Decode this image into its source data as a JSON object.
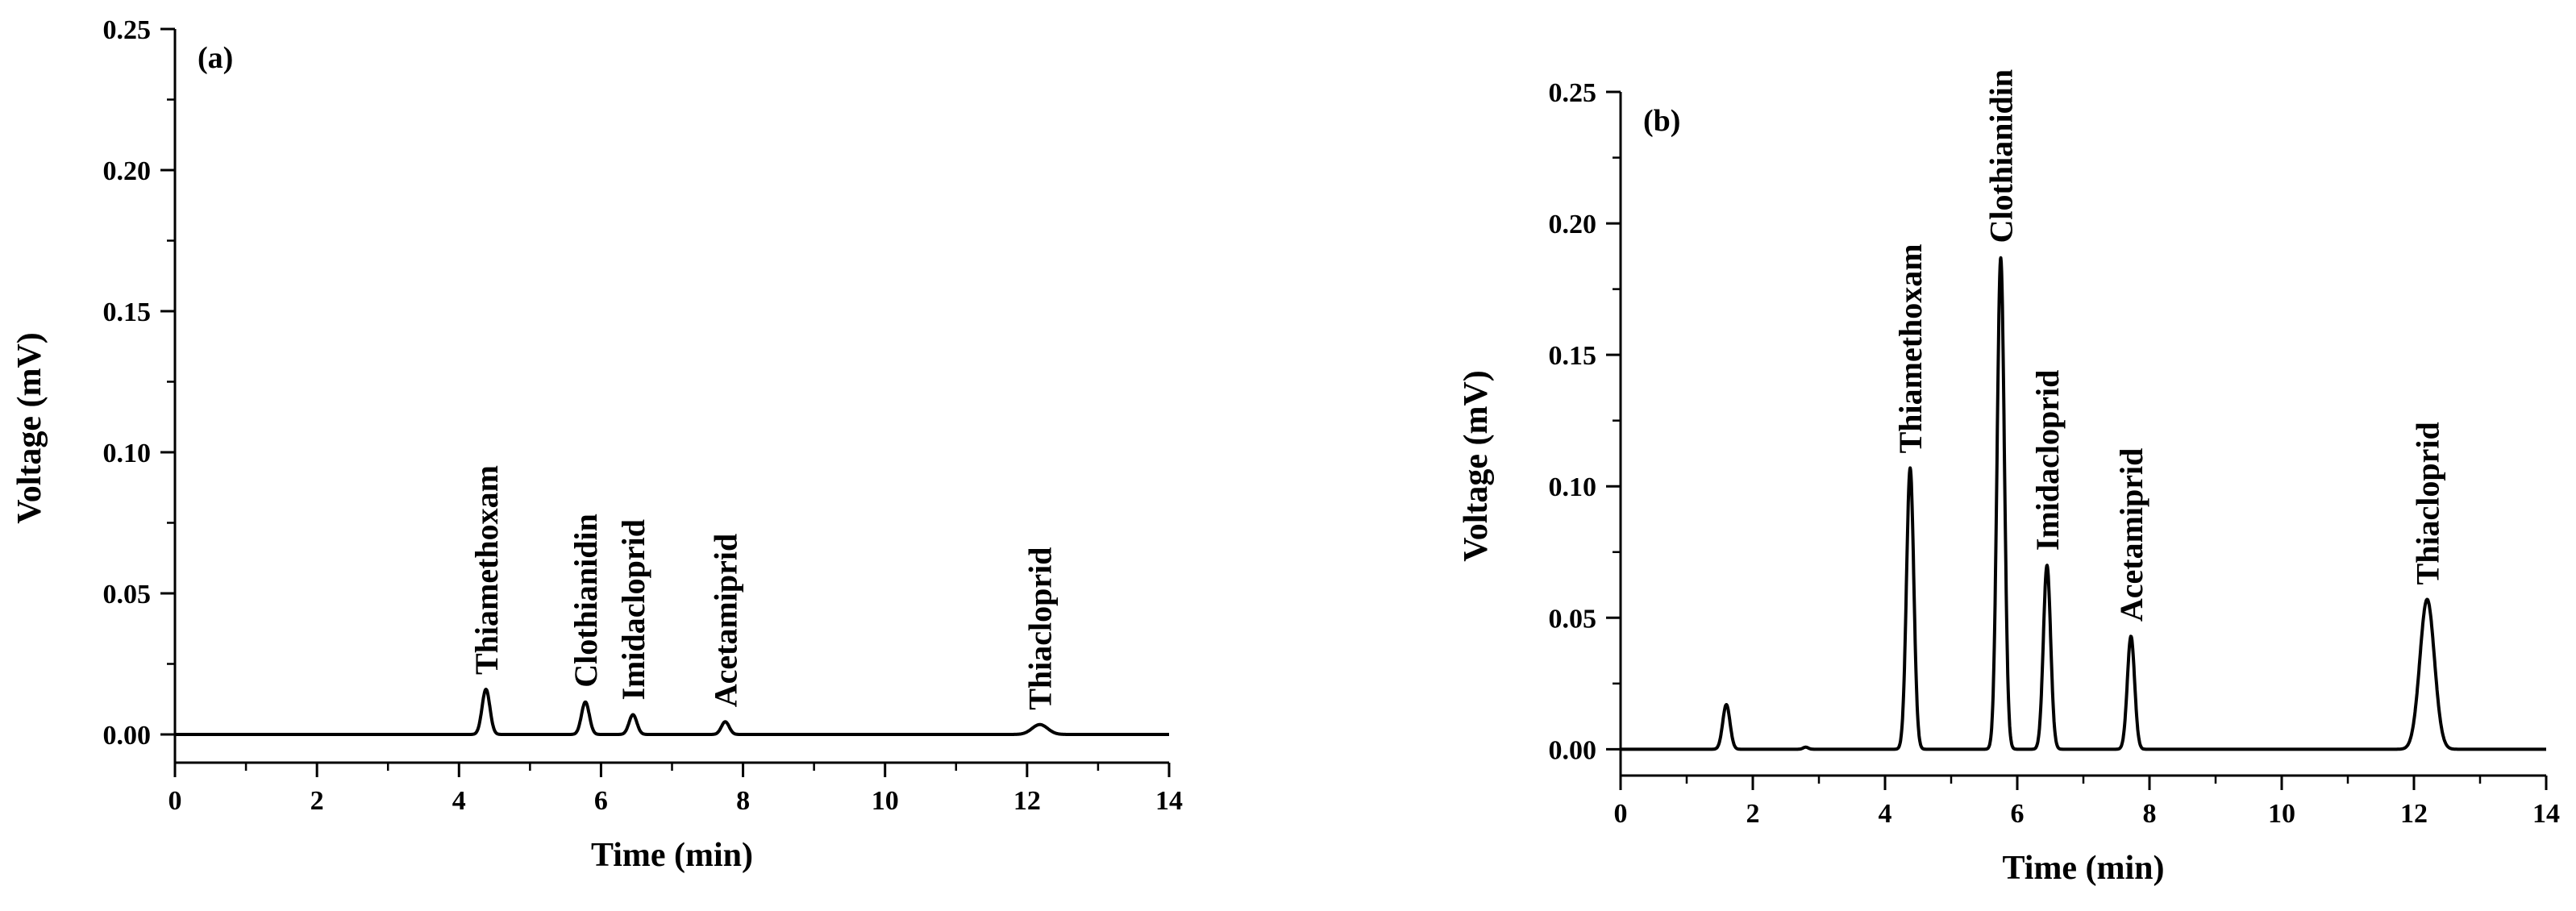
{
  "chart_data": [
    {
      "type": "line",
      "panel_label": "(a)",
      "xlabel": "Time (min)",
      "ylabel": "Voltage (mV)",
      "xlim": [
        0,
        14
      ],
      "ylim": [
        -0.01,
        0.25
      ],
      "x_ticks": [
        "0",
        "2",
        "4",
        "6",
        "8",
        "10",
        "12",
        "14"
      ],
      "y_ticks": [
        "0.00",
        "0.05",
        "0.10",
        "0.15",
        "0.20",
        "0.25"
      ],
      "grid": false,
      "peaks": [
        {
          "label": "Thiamethoxam",
          "time": 4.38,
          "height": 0.016
        },
        {
          "label": "Clothianidin",
          "time": 5.78,
          "height": 0.0115
        },
        {
          "label": "Imidacloprid",
          "time": 6.45,
          "height": 0.007
        },
        {
          "label": "Acetamiprid",
          "time": 7.75,
          "height": 0.0045
        },
        {
          "label": "Thiacloprid",
          "time": 12.18,
          "height": 0.0035
        }
      ]
    },
    {
      "type": "line",
      "panel_label": "(b)",
      "xlabel": "Time (min)",
      "ylabel": "Voltage (mV)",
      "xlim": [
        0,
        14
      ],
      "ylim": [
        -0.01,
        0.25
      ],
      "x_ticks": [
        "0",
        "2",
        "4",
        "6",
        "8",
        "10",
        "12",
        "14"
      ],
      "y_ticks": [
        "0.00",
        "0.05",
        "0.10",
        "0.15",
        "0.20",
        "0.25"
      ],
      "grid": false,
      "minor_peaks": [
        {
          "time": 1.6,
          "height": 0.017
        }
      ],
      "peaks": [
        {
          "label": "Thiamethoxam",
          "time": 4.38,
          "height": 0.107
        },
        {
          "label": "Clothianidin",
          "time": 5.75,
          "height": 0.187
        },
        {
          "label": "Imidacloprid",
          "time": 6.45,
          "height": 0.07
        },
        {
          "label": "Acetamiprid",
          "time": 7.72,
          "height": 0.043
        },
        {
          "label": "Thiacloprid",
          "time": 12.2,
          "height": 0.057
        }
      ]
    }
  ]
}
